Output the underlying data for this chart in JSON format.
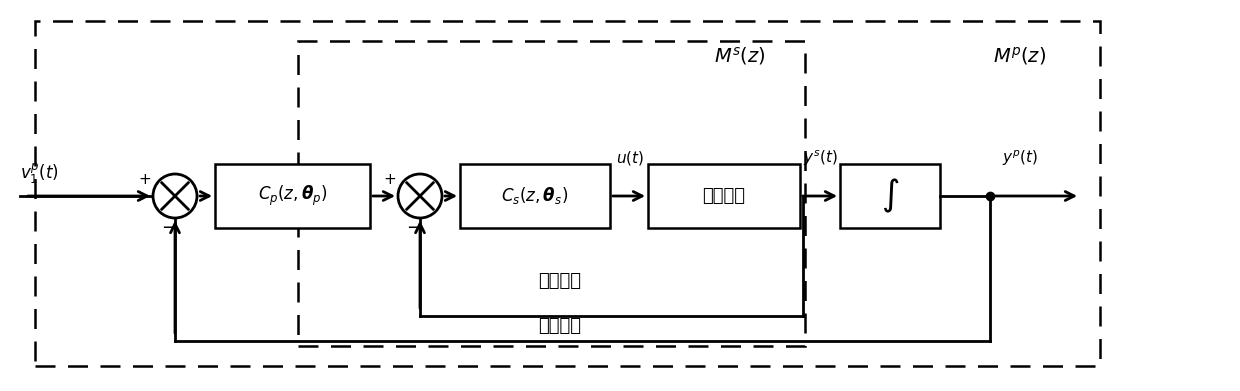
{
  "fig_width": 12.4,
  "fig_height": 3.91,
  "bg_color": "#ffffff",
  "line_color": "#000000",
  "label_v1": "$v_1^p(t)$",
  "label_Cp": "$C_p(z,\\boldsymbol{\\theta}_p)$",
  "label_Cs": "$C_s(z,\\boldsymbol{\\theta}_s)$",
  "label_plant": "被控对象",
  "label_integrator": "$\\int$",
  "label_Ms": "$M^s(z)$",
  "label_Mp": "$M^p(z)$",
  "label_ut": "$u(t)$",
  "label_yst": "$y^s(t)$",
  "label_ypt": "$y^p(t)$",
  "label_inner": "速度内环",
  "label_outer": "位置外环",
  "plus_sign": "$+$",
  "minus_sign": "$-$"
}
